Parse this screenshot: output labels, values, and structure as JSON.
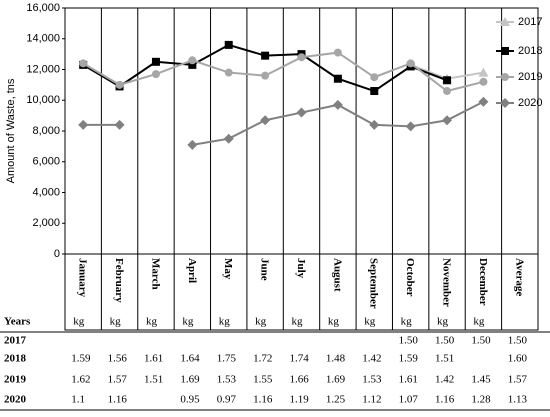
{
  "chart_data": {
    "type": "line",
    "y_label": "Amount of Waste, tns",
    "categories": [
      "January",
      "February",
      "March",
      "April",
      "May",
      "June",
      "July",
      "August",
      "September",
      "October",
      "November",
      "December",
      "Average"
    ],
    "ylim": [
      0,
      16000
    ],
    "yticks": [
      0,
      {
        "value": 2000,
        "label": "2,000"
      },
      {
        "value": 4000,
        "label": "4,000"
      },
      {
        "value": 6000,
        "label": "6,000"
      },
      {
        "value": 8000,
        "label": "8,000"
      },
      {
        "value": 10000,
        "label": "10,000"
      },
      {
        "value": 12000,
        "label": "12,000"
      },
      {
        "value": 14000,
        "label": "14,000"
      },
      {
        "value": 16000,
        "label": "16,000"
      }
    ],
    "legend": "upper right",
    "series": [
      {
        "name": "2017",
        "color": "#c4c4c4",
        "marker": "triangle",
        "values": [
          null,
          null,
          null,
          null,
          null,
          null,
          null,
          null,
          null,
          12300,
          11400,
          11800,
          null
        ]
      },
      {
        "name": "2018",
        "color": "#000000",
        "marker": "square",
        "values": [
          12300,
          10900,
          12500,
          12300,
          13600,
          12900,
          13000,
          11400,
          10600,
          12200,
          11300,
          null,
          null
        ]
      },
      {
        "name": "2019",
        "color": "#a6a6a6",
        "marker": "circle",
        "values": [
          12400,
          11000,
          11700,
          12600,
          11800,
          11600,
          12800,
          13100,
          11500,
          12400,
          10600,
          11200,
          null
        ]
      },
      {
        "name": "2020",
        "color": "#808080",
        "marker": "diamond",
        "values": [
          8400,
          8400,
          null,
          7100,
          7500,
          8700,
          9200,
          9700,
          8400,
          8300,
          8700,
          9900,
          null
        ]
      }
    ]
  },
  "table": {
    "header": "Years",
    "units": [
      "kg",
      "kg",
      "kg",
      "kg",
      "kg",
      "kg",
      "kg",
      "kg",
      "kg",
      "kg",
      "kg",
      "kg"
    ],
    "rows": [
      {
        "year": "2017",
        "cells": [
          null,
          null,
          null,
          null,
          null,
          null,
          null,
          null,
          null,
          "1.50",
          "1.50",
          "1.50",
          "1.50"
        ]
      },
      {
        "year": "2018",
        "cells": [
          "1.59",
          "1.56",
          "1.61",
          "1.64",
          "1.75",
          "1.72",
          "1.74",
          "1.48",
          "1.42",
          "1.59",
          "1.51",
          null,
          "1.60"
        ]
      },
      {
        "year": "2019",
        "cells": [
          "1.62",
          "1.57",
          "1.51",
          "1.69",
          "1.53",
          "1.55",
          "1.66",
          "1.69",
          "1.53",
          "1.61",
          "1.42",
          "1.45",
          "1.57"
        ]
      },
      {
        "year": "2020",
        "cells": [
          "1.1",
          "1.16",
          null,
          "0.95",
          "0.97",
          "1.16",
          "1.19",
          "1.25",
          "1.12",
          "1.07",
          "1.16",
          "1.28",
          "1.13"
        ]
      }
    ]
  }
}
